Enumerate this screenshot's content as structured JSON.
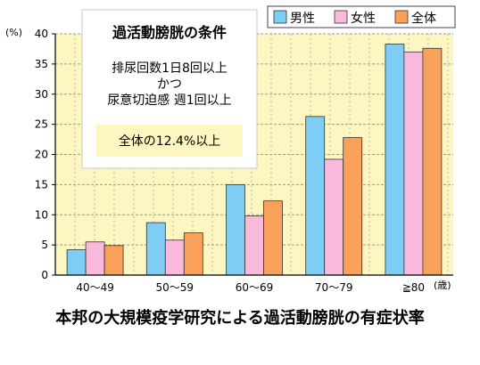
{
  "chart_data": {
    "type": "bar",
    "caption": "本邦の大規模疫学研究による過活動膀胱の有症状率",
    "y_unit": "(%)",
    "x_unit": "(歳)",
    "ylim": [
      0,
      40
    ],
    "yticks": [
      0,
      5,
      10,
      15,
      20,
      25,
      30,
      35,
      40
    ],
    "categories": [
      "40～49",
      "50～59",
      "60～69",
      "70～79",
      "≧80"
    ],
    "series": [
      {
        "name": "男性",
        "color": "#7ecdf4",
        "values": [
          4.2,
          8.7,
          15.0,
          26.3,
          38.3
        ]
      },
      {
        "name": "女性",
        "color": "#f9b9dc",
        "values": [
          5.5,
          5.8,
          9.8,
          19.2,
          37.0
        ]
      },
      {
        "name": "全体",
        "color": "#f9a15a",
        "values": [
          4.9,
          7.0,
          12.3,
          22.8,
          37.6
        ]
      }
    ],
    "grid": true,
    "legend_position": "top-right",
    "plot_background": "#fdf6c0"
  },
  "info_box": {
    "title": "過活動膀胱の条件",
    "lines": [
      "排尿回数1日8回以上",
      "かつ",
      "尿意切迫感 週1回以上"
    ],
    "highlight": "全体の12.4%以上"
  }
}
